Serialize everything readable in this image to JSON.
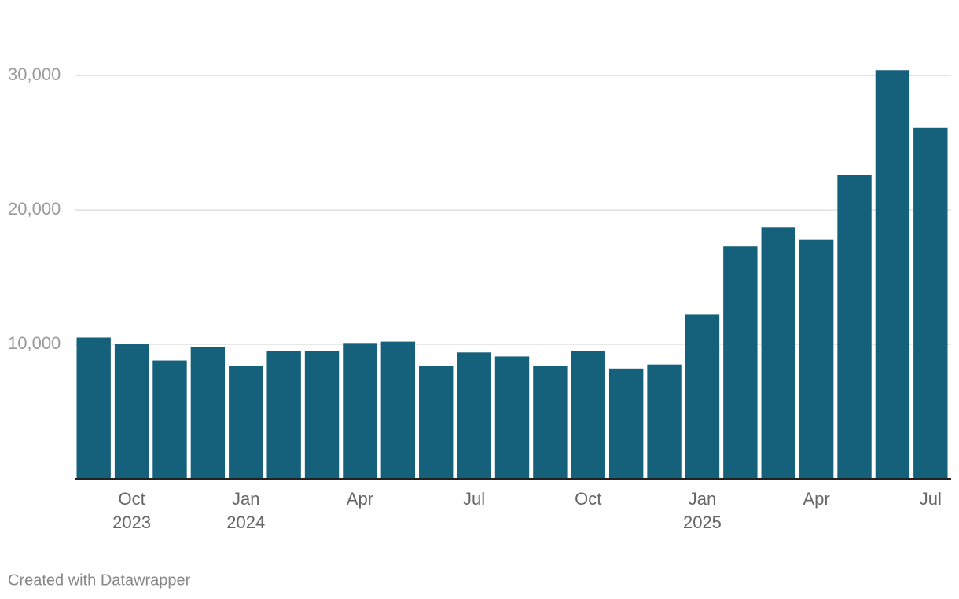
{
  "chart_data": {
    "type": "bar",
    "categories": [
      null,
      "Oct 2023",
      null,
      null,
      "Jan 2024",
      null,
      null,
      "Apr",
      null,
      null,
      "Jul",
      null,
      null,
      "Oct",
      null,
      null,
      "Jan 2025",
      null,
      null,
      "Apr",
      null,
      null,
      "Jul"
    ],
    "values": [
      10500,
      10000,
      8800,
      9800,
      8400,
      9500,
      9500,
      10100,
      10200,
      8400,
      9400,
      9100,
      8400,
      9500,
      8200,
      8500,
      12200,
      17300,
      18700,
      17800,
      22600,
      30400,
      26100
    ],
    "color": "#15607a",
    "ylim": [
      0,
      31000
    ],
    "yticks": [
      {
        "value": 10000,
        "label": "10,000"
      },
      {
        "value": 20000,
        "label": "20,000"
      },
      {
        "value": 30000,
        "label": "30,000"
      }
    ],
    "grid": true,
    "footer": "Created with Datawrapper"
  }
}
